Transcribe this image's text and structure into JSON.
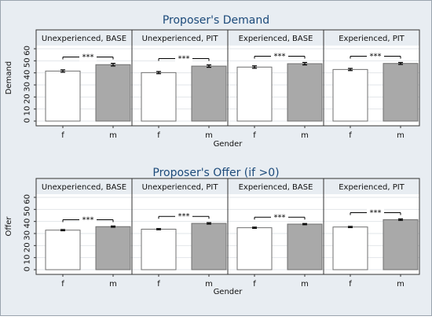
{
  "chart_data": [
    {
      "type": "bar",
      "title": "Proposer's Demand",
      "xlabel": "Gender",
      "ylabel": "Demand",
      "ylim": [
        0,
        60
      ],
      "yticks": [
        "0",
        "10",
        "20",
        "30",
        "40",
        "50",
        "60"
      ],
      "categories": [
        "f",
        "m"
      ],
      "grid": "horizontal",
      "significance_label": "***",
      "panels": [
        {
          "label": "Unexperienced, BASE",
          "values": [
            41.5,
            46.8
          ],
          "errors": [
            1.0,
            1.1
          ]
        },
        {
          "label": "Unexperienced, PIT",
          "values": [
            40.2,
            45.6
          ],
          "errors": [
            0.9,
            1.0
          ]
        },
        {
          "label": "Experienced, BASE",
          "values": [
            44.8,
            47.6
          ],
          "errors": [
            1.0,
            1.0
          ]
        },
        {
          "label": "Experienced, PIT",
          "values": [
            42.8,
            47.8
          ],
          "errors": [
            0.9,
            0.8
          ]
        }
      ]
    },
    {
      "type": "bar",
      "title": "Proposer's Offer (if >0)",
      "xlabel": "Gender",
      "ylabel": "Offer",
      "ylim": [
        0,
        60
      ],
      "yticks": [
        "0",
        "10",
        "20",
        "30",
        "40",
        "50",
        "60"
      ],
      "categories": [
        "f",
        "m"
      ],
      "grid": "horizontal",
      "significance_label": "***",
      "panels": [
        {
          "label": "Unexperienced, BASE",
          "values": [
            32.8,
            35.7
          ],
          "errors": [
            0.5,
            0.5
          ]
        },
        {
          "label": "Unexperienced, PIT",
          "values": [
            33.6,
            38.4
          ],
          "errors": [
            0.5,
            0.6
          ]
        },
        {
          "label": "Experienced, BASE",
          "values": [
            34.8,
            37.8
          ],
          "errors": [
            0.5,
            0.5
          ]
        },
        {
          "label": "Experienced, PIT",
          "values": [
            35.4,
            41.5
          ],
          "errors": [
            0.5,
            0.6
          ]
        }
      ]
    }
  ],
  "colors": {
    "outer_background": "#e8edf2",
    "plot_background": "#ffffff",
    "bar_f_fill": "#ffffff",
    "bar_m_fill": "#a9a9a9",
    "bar_stroke": "#6f6f6f",
    "grid": "#e2e6ea",
    "title": "#1c4a7a",
    "text": "#111111",
    "axis": "#333333"
  }
}
